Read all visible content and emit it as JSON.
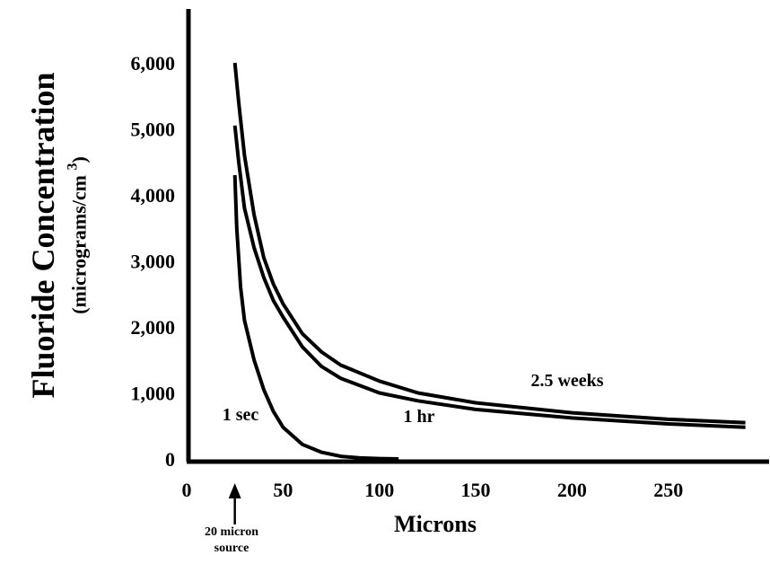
{
  "chart_data": {
    "type": "line",
    "ylabel": "Fluoride Concentration",
    "ylabel_unit_prefix": "(micrograms/cm",
    "ylabel_unit_sup": "3",
    "ylabel_unit_suffix": ")",
    "xlabel": "Microns",
    "xlim": [
      0,
      295
    ],
    "ylim": [
      0,
      6500
    ],
    "x_ticks": [
      0,
      50,
      100,
      150,
      200,
      250
    ],
    "x_tick_labels": [
      "0",
      "50",
      "100",
      "150",
      "200",
      "250"
    ],
    "y_ticks": [
      0,
      1000,
      2000,
      3000,
      4000,
      5000,
      6000
    ],
    "y_tick_labels": [
      "0",
      "1,000",
      "2,000",
      "3,000",
      "4,000",
      "5,000",
      "6,000"
    ],
    "grid": false,
    "series": [
      {
        "name": "2.5 weeks",
        "x": [
          25,
          27,
          30,
          35,
          40,
          45,
          50,
          60,
          70,
          80,
          100,
          120,
          150,
          200,
          250,
          290
        ],
        "y": [
          6000,
          5400,
          4600,
          3700,
          3050,
          2650,
          2350,
          1900,
          1620,
          1420,
          1180,
          1000,
          850,
          700,
          600,
          550
        ]
      },
      {
        "name": "1 hr",
        "x": [
          25,
          27,
          30,
          35,
          40,
          45,
          50,
          60,
          70,
          80,
          100,
          120,
          150,
          200,
          250,
          290
        ],
        "y": [
          5050,
          4500,
          3800,
          3200,
          2750,
          2400,
          2150,
          1700,
          1400,
          1220,
          1000,
          880,
          750,
          620,
          530,
          480
        ]
      },
      {
        "name": "1 sec",
        "x": [
          25,
          26,
          28,
          30,
          35,
          40,
          45,
          50,
          60,
          70,
          80,
          90,
          100,
          110
        ],
        "y": [
          4300,
          3500,
          2600,
          2100,
          1500,
          1050,
          720,
          480,
          220,
          100,
          40,
          15,
          5,
          0
        ]
      }
    ],
    "annotations": [
      {
        "text": "20 micron",
        "x": 25
      },
      {
        "text": "source",
        "x": 25
      }
    ]
  }
}
